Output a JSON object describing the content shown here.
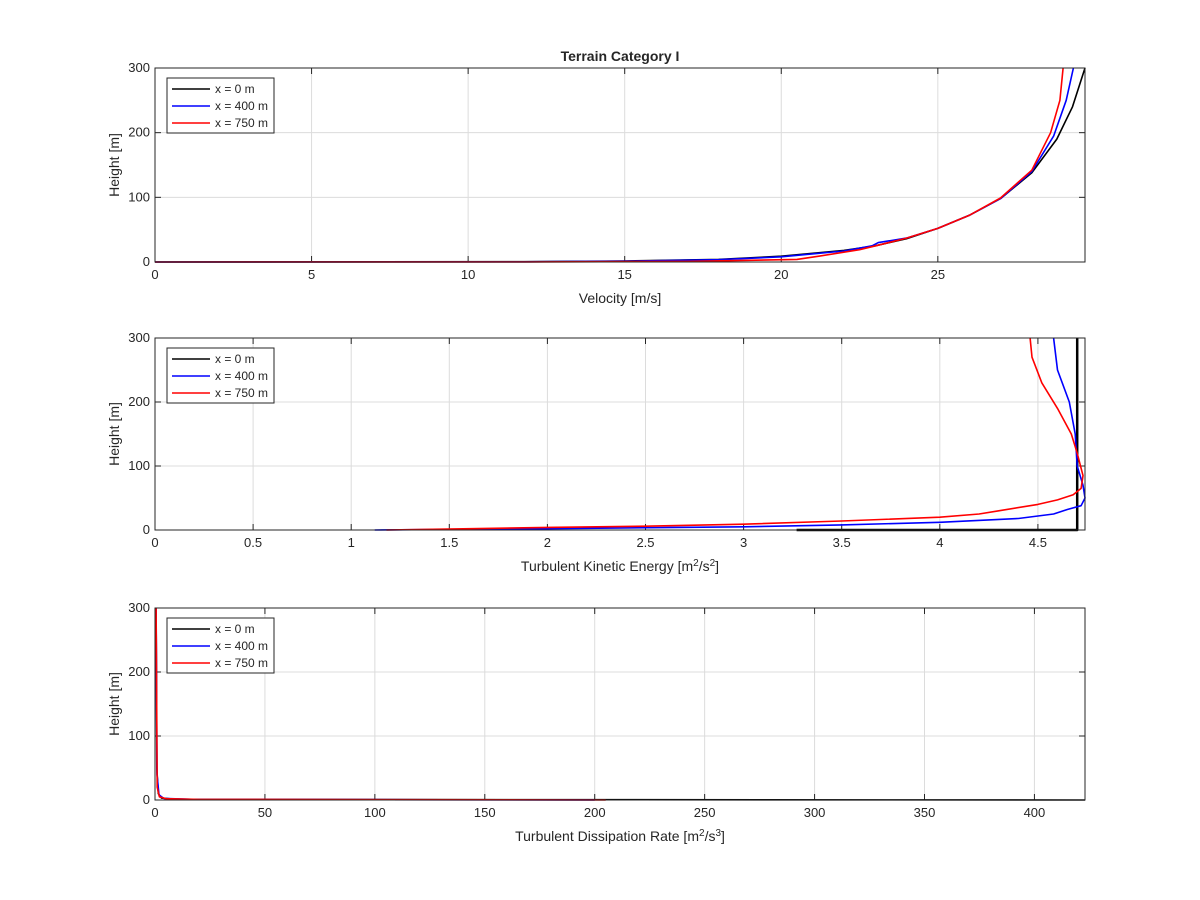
{
  "colors": {
    "x0": "#000000",
    "x400": "#0000ff",
    "x750": "#ff0000",
    "grid": "#dcdcdc",
    "axis": "#262626"
  },
  "chart_data": [
    {
      "type": "line",
      "title": "Terrain Category I",
      "xlabel": "Velocity [m/s]",
      "ylabel": "Height [m]",
      "xlim": [
        0,
        29.7
      ],
      "ylim": [
        0,
        300
      ],
      "xticks": [
        0,
        5,
        10,
        15,
        20,
        25
      ],
      "yticks": [
        0,
        100,
        200,
        300
      ],
      "grid": true,
      "legend": "top-left",
      "series": [
        {
          "name": "x = 0 m",
          "color": "#000000",
          "points": [
            [
              0,
              0
            ],
            [
              11.8,
              0.5
            ],
            [
              15,
              1.5
            ],
            [
              18,
              4
            ],
            [
              20,
              9
            ],
            [
              22,
              18
            ],
            [
              23,
              25
            ],
            [
              24,
              36
            ],
            [
              25,
              52
            ],
            [
              26,
              72
            ],
            [
              27,
              98
            ],
            [
              28,
              138
            ],
            [
              28.8,
              190
            ],
            [
              29.3,
              240
            ],
            [
              29.7,
              300
            ]
          ]
        },
        {
          "name": "x = 400 m",
          "color": "#0000ff",
          "points": [
            [
              0,
              0
            ],
            [
              11.8,
              0.3
            ],
            [
              15,
              1.2
            ],
            [
              18,
              3.5
            ],
            [
              20,
              8
            ],
            [
              22,
              17
            ],
            [
              22.9,
              25
            ],
            [
              23.1,
              30
            ],
            [
              24,
              37
            ],
            [
              25,
              52
            ],
            [
              26,
              72
            ],
            [
              27,
              98
            ],
            [
              28,
              140
            ],
            [
              28.7,
              195
            ],
            [
              29.1,
              250
            ],
            [
              29.33,
              300
            ]
          ]
        },
        {
          "name": "x = 750 m",
          "color": "#ff0000",
          "points": [
            [
              0,
              0
            ],
            [
              12,
              0.2
            ],
            [
              17,
              1
            ],
            [
              20.5,
              4
            ],
            [
              21.2,
              9
            ],
            [
              22.5,
              19
            ],
            [
              23.1,
              26
            ],
            [
              24,
              37
            ],
            [
              25,
              52
            ],
            [
              26,
              72
            ],
            [
              27,
              99
            ],
            [
              28,
              142
            ],
            [
              28.6,
              200
            ],
            [
              28.9,
              250
            ],
            [
              29.0,
              300
            ]
          ]
        }
      ]
    },
    {
      "type": "line",
      "title": "",
      "xlabel": "Turbulent Kinetic Energy [m²/s²]",
      "xlabel_base": "Turbulent Kinetic Energy [m",
      "xlabel_sup1": "2",
      "xlabel_mid": "/s",
      "xlabel_sup2": "2",
      "xlabel_end": "]",
      "ylabel": "Height [m]",
      "xlim": [
        0,
        4.74
      ],
      "ylim": [
        0,
        300
      ],
      "xticks": [
        0,
        0.5,
        1,
        1.5,
        2,
        2.5,
        3,
        3.5,
        4,
        4.5
      ],
      "yticks": [
        0,
        100,
        200,
        300
      ],
      "grid": true,
      "legend": "top-left",
      "series": [
        {
          "name": "x = 0 m",
          "color": "#000000",
          "points": [
            [
              3.27,
              0
            ],
            [
              4.7,
              0
            ],
            [
              4.7,
              300
            ]
          ]
        },
        {
          "name": "x = 400 m",
          "color": "#0000ff",
          "points": [
            [
              1.12,
              0
            ],
            [
              2,
              2
            ],
            [
              3,
              5
            ],
            [
              3.5,
              8
            ],
            [
              4,
              12
            ],
            [
              4.4,
              18
            ],
            [
              4.58,
              25
            ],
            [
              4.65,
              32
            ],
            [
              4.72,
              38
            ],
            [
              4.74,
              50
            ],
            [
              4.73,
              70
            ],
            [
              4.7,
              100
            ],
            [
              4.69,
              150
            ],
            [
              4.66,
              200
            ],
            [
              4.6,
              250
            ],
            [
              4.58,
              300
            ]
          ]
        },
        {
          "name": "x = 750 m",
          "color": "#ff0000",
          "points": [
            [
              1.18,
              0
            ],
            [
              2,
              4
            ],
            [
              2.5,
              6
            ],
            [
              3,
              9
            ],
            [
              3.5,
              14
            ],
            [
              4,
              20
            ],
            [
              4.2,
              25
            ],
            [
              4.3,
              30
            ],
            [
              4.5,
              40
            ],
            [
              4.6,
              47
            ],
            [
              4.68,
              55
            ],
            [
              4.72,
              65
            ],
            [
              4.73,
              85
            ],
            [
              4.7,
              120
            ],
            [
              4.67,
              150
            ],
            [
              4.6,
              190
            ],
            [
              4.52,
              230
            ],
            [
              4.47,
              270
            ],
            [
              4.46,
              300
            ]
          ]
        }
      ]
    },
    {
      "type": "line",
      "title": "",
      "xlabel": "Turbulent Dissipation Rate [m²/s³]",
      "xlabel_base": "Turbulent Dissipation Rate [m",
      "xlabel_sup1": "2",
      "xlabel_mid": "/s",
      "xlabel_sup2": "3",
      "xlabel_end": "]",
      "ylabel": "Height [m]",
      "xlim": [
        0,
        423
      ],
      "ylim": [
        0,
        300
      ],
      "xticks": [
        0,
        50,
        100,
        150,
        200,
        250,
        300,
        350,
        400
      ],
      "yticks": [
        0,
        100,
        200,
        300
      ],
      "grid": true,
      "legend": "top-left",
      "series": [
        {
          "name": "x = 0 m",
          "color": "#000000",
          "points": [
            [
              423,
              0
            ],
            [
              10,
              1
            ],
            [
              3,
              3
            ],
            [
              1.5,
              10
            ],
            [
              0.8,
              50
            ],
            [
              0.5,
              300
            ]
          ]
        },
        {
          "name": "x = 400 m",
          "color": "#0000ff",
          "points": [
            [
              200,
              0
            ],
            [
              18,
              1
            ],
            [
              4,
              2.5
            ],
            [
              1.8,
              8
            ],
            [
              0.9,
              40
            ],
            [
              0.5,
              300
            ]
          ]
        },
        {
          "name": "x = 750 m",
          "color": "#ff0000",
          "points": [
            [
              205,
              0
            ],
            [
              20,
              1
            ],
            [
              5,
              2
            ],
            [
              2,
              5
            ],
            [
              1,
              20
            ],
            [
              0.5,
              300
            ]
          ]
        }
      ]
    }
  ]
}
